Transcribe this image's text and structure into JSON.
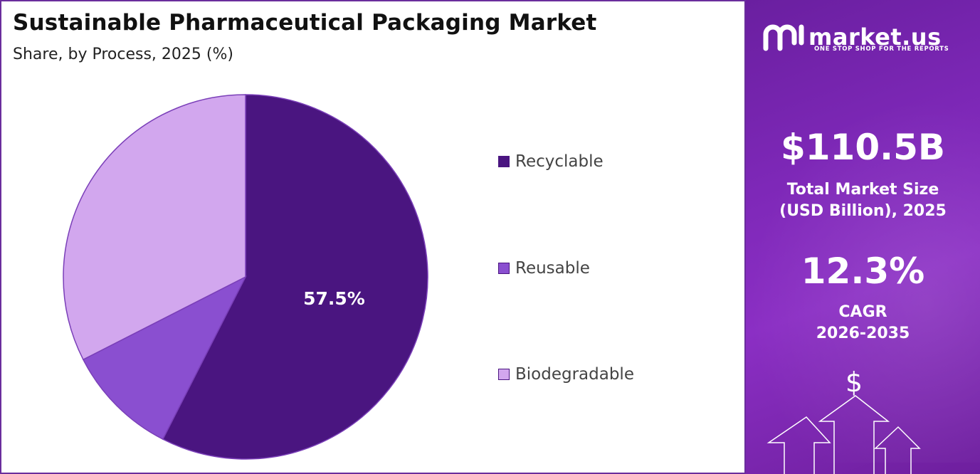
{
  "header": {
    "title": "Sustainable Pharmaceutical Packaging Market",
    "subtitle": "Share, by Process, 2025 (%)"
  },
  "chart_data": {
    "type": "pie",
    "title": "Sustainable Pharmaceutical Packaging Market",
    "subtitle": "Share, by Process, 2025 (%)",
    "categories": [
      "Recyclable",
      "Reusable",
      "Biodegradable"
    ],
    "values": [
      57.5,
      10.0,
      32.5
    ],
    "labels": [
      "57.5%",
      "",
      ""
    ],
    "colors": [
      "#4a1580",
      "#8a4fd0",
      "#d2a7ee"
    ],
    "legend_position": "right"
  },
  "panel": {
    "logo_text": "market.us",
    "logo_tagline": "ONE STOP SHOP FOR THE REPORTS",
    "market_size": "$110.5B",
    "market_size_label_line1": "Total Market Size",
    "market_size_label_line2": "(USD Billion), 2025",
    "cagr": "12.3%",
    "cagr_label_line1": "CAGR",
    "cagr_label_line2": "2026-2035",
    "currency_symbol": "$"
  }
}
